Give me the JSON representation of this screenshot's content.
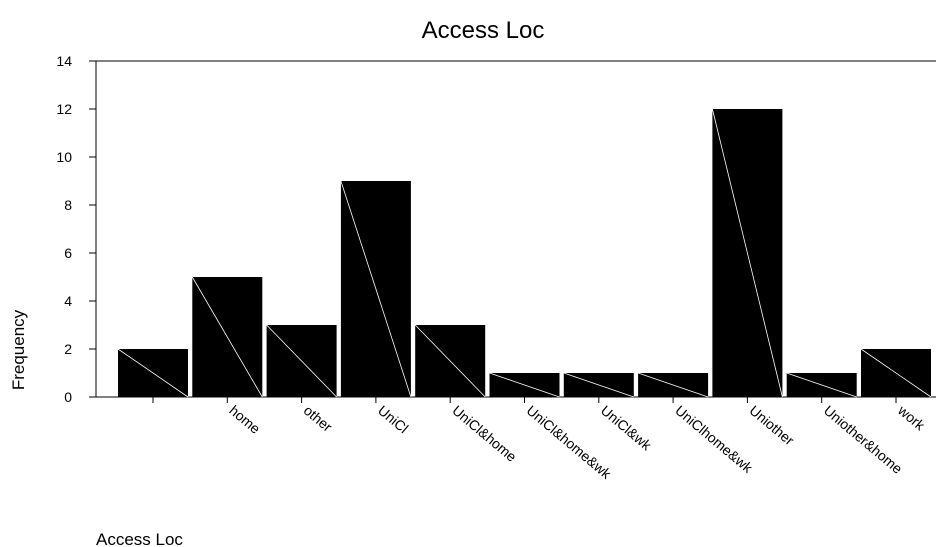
{
  "chart_data": {
    "type": "bar",
    "title": "Access Loc",
    "xlabel": "Access Loc",
    "ylabel": "Frequency",
    "categories": [
      "",
      "home",
      "other",
      "UniCl",
      "UniCl&home",
      "UniCl&home&wk",
      "UniCl&wk",
      "UniClhome&wk",
      "Uniother",
      "Uniother&home",
      "work"
    ],
    "values": [
      2,
      5,
      3,
      9,
      3,
      1,
      1,
      1,
      12,
      1,
      2
    ],
    "yticks": [
      0,
      2,
      4,
      6,
      8,
      10,
      12,
      14
    ],
    "ylim": [
      0,
      14
    ],
    "grid": false,
    "legend": "none",
    "bar_color": "#000000",
    "diagonal_color": "#ffffff"
  }
}
